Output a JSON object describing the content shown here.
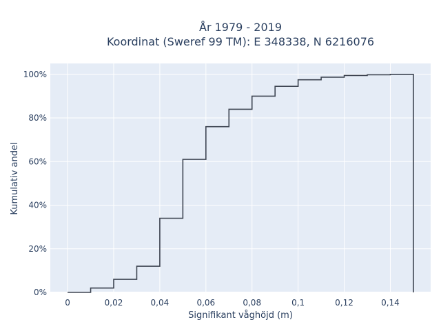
{
  "chart_data": {
    "type": "step",
    "title_lines": [
      "År 1979 - 2019",
      "Koordinat (Sweref 99 TM): E 348338, N 6216076"
    ],
    "xlabel": "Signifikant våghöjd (m)",
    "ylabel": "Kumulativ andel",
    "xlim": [
      -0.0075,
      0.1575
    ],
    "ylim": [
      0,
      1.05
    ],
    "x_ticks": [
      0,
      0.02,
      0.04,
      0.06,
      0.08,
      0.1,
      0.12,
      0.14
    ],
    "x_tick_labels": [
      "0",
      "0,02",
      "0,04",
      "0,06",
      "0,08",
      "0,1",
      "0,12",
      "0,14"
    ],
    "y_ticks": [
      0,
      0.2,
      0.4,
      0.6,
      0.8,
      1.0
    ],
    "y_tick_labels": [
      "0%",
      "20%",
      "40%",
      "60%",
      "80%",
      "100%"
    ],
    "bin_edges": [
      0,
      0.01,
      0.02,
      0.03,
      0.04,
      0.05,
      0.06,
      0.07,
      0.08,
      0.09,
      0.1,
      0.11,
      0.12,
      0.13,
      0.14,
      0.15
    ],
    "cumulative_values": [
      0.0,
      0.02,
      0.06,
      0.12,
      0.34,
      0.61,
      0.76,
      0.84,
      0.9,
      0.945,
      0.975,
      0.987,
      0.995,
      0.998,
      1.0
    ],
    "grid": true,
    "plot_bg": "#e5ecf6",
    "grid_color": "#ffffff",
    "line_color": "#3d4451"
  }
}
